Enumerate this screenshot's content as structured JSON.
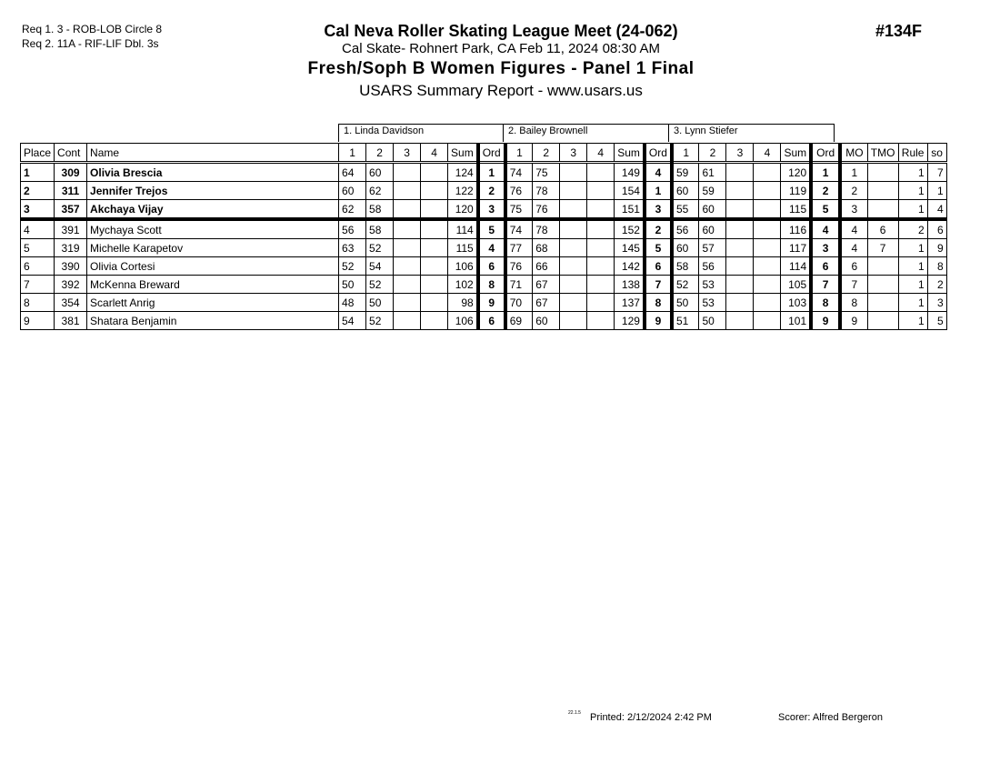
{
  "header": {
    "requirements": [
      "Req  1.  3 - ROB-LOB Circle 8",
      "Req  2.  11A - RIF-LIF Dbl. 3s"
    ],
    "title": "Cal Neva Roller Skating League Meet (24-062)",
    "venue": "Cal Skate- Rohnert Park, CA  Feb 11, 2024  08:30 AM",
    "event": "Fresh/Soph B Women Figures - Panel 1 Final",
    "report": "USARS Summary Report - www.usars.us",
    "event_number": "#134F"
  },
  "judges": [
    "1.  Linda Davidson",
    "2.  Bailey Brownell",
    "3.  Lynn Stiefer"
  ],
  "columns": {
    "place": "Place",
    "cont": "Cont",
    "name": "Name",
    "judge_cols": [
      "1",
      "2",
      "3",
      "4",
      "Sum",
      "Ord"
    ],
    "mo": "MO",
    "tmo": "TMO",
    "rule": "Rule",
    "so": "so"
  },
  "rows": [
    {
      "place": "1",
      "cont": "309",
      "name": "Olivia Brescia",
      "bold": true,
      "j": [
        [
          "64",
          "60",
          "",
          "",
          "124",
          "1"
        ],
        [
          "74",
          "75",
          "",
          "",
          "149",
          "4"
        ],
        [
          "59",
          "61",
          "",
          "",
          "120",
          "1"
        ]
      ],
      "mo": "1",
      "tmo": "",
      "rule": "1",
      "so": "7"
    },
    {
      "place": "2",
      "cont": "311",
      "name": "Jennifer Trejos",
      "bold": true,
      "j": [
        [
          "60",
          "62",
          "",
          "",
          "122",
          "2"
        ],
        [
          "76",
          "78",
          "",
          "",
          "154",
          "1"
        ],
        [
          "60",
          "59",
          "",
          "",
          "119",
          "2"
        ]
      ],
      "mo": "2",
      "tmo": "",
      "rule": "1",
      "so": "1"
    },
    {
      "place": "3",
      "cont": "357",
      "name": "Akchaya Vijay",
      "bold": true,
      "j": [
        [
          "62",
          "58",
          "",
          "",
          "120",
          "3"
        ],
        [
          "75",
          "76",
          "",
          "",
          "151",
          "3"
        ],
        [
          "55",
          "60",
          "",
          "",
          "115",
          "5"
        ]
      ],
      "mo": "3",
      "tmo": "",
      "rule": "1",
      "so": "4"
    },
    {
      "place": "4",
      "cont": "391",
      "name": "Mychaya Scott",
      "bold": false,
      "j": [
        [
          "56",
          "58",
          "",
          "",
          "114",
          "5"
        ],
        [
          "74",
          "78",
          "",
          "",
          "152",
          "2"
        ],
        [
          "56",
          "60",
          "",
          "",
          "116",
          "4"
        ]
      ],
      "mo": "4",
      "tmo": "6",
      "rule": "2",
      "so": "6"
    },
    {
      "place": "5",
      "cont": "319",
      "name": "Michelle Karapetov",
      "bold": false,
      "j": [
        [
          "63",
          "52",
          "",
          "",
          "115",
          "4"
        ],
        [
          "77",
          "68",
          "",
          "",
          "145",
          "5"
        ],
        [
          "60",
          "57",
          "",
          "",
          "117",
          "3"
        ]
      ],
      "mo": "4",
      "tmo": "7",
      "rule": "1",
      "so": "9"
    },
    {
      "place": "6",
      "cont": "390",
      "name": "Olivia Cortesi",
      "bold": false,
      "j": [
        [
          "52",
          "54",
          "",
          "",
          "106",
          "6"
        ],
        [
          "76",
          "66",
          "",
          "",
          "142",
          "6"
        ],
        [
          "58",
          "56",
          "",
          "",
          "114",
          "6"
        ]
      ],
      "mo": "6",
      "tmo": "",
      "rule": "1",
      "so": "8"
    },
    {
      "place": "7",
      "cont": "392",
      "name": "McKenna Breward",
      "bold": false,
      "j": [
        [
          "50",
          "52",
          "",
          "",
          "102",
          "8"
        ],
        [
          "71",
          "67",
          "",
          "",
          "138",
          "7"
        ],
        [
          "52",
          "53",
          "",
          "",
          "105",
          "7"
        ]
      ],
      "mo": "7",
      "tmo": "",
      "rule": "1",
      "so": "2"
    },
    {
      "place": "8",
      "cont": "354",
      "name": "Scarlett Anrig",
      "bold": false,
      "j": [
        [
          "48",
          "50",
          "",
          "",
          "98",
          "9"
        ],
        [
          "70",
          "67",
          "",
          "",
          "137",
          "8"
        ],
        [
          "50",
          "53",
          "",
          "",
          "103",
          "8"
        ]
      ],
      "mo": "8",
      "tmo": "",
      "rule": "1",
      "so": "3"
    },
    {
      "place": "9",
      "cont": "381",
      "name": "Shatara Benjamin",
      "bold": false,
      "j": [
        [
          "54",
          "52",
          "",
          "",
          "106",
          "6"
        ],
        [
          "69",
          "60",
          "",
          "",
          "129",
          "9"
        ],
        [
          "51",
          "50",
          "",
          "",
          "101",
          "9"
        ]
      ],
      "mo": "9",
      "tmo": "",
      "rule": "1",
      "so": "5"
    }
  ],
  "footer": {
    "version": "22.1.5",
    "printed": "Printed:  2/12/2024  2:42 PM",
    "scorer": "Scorer:   Alfred Bergeron"
  }
}
